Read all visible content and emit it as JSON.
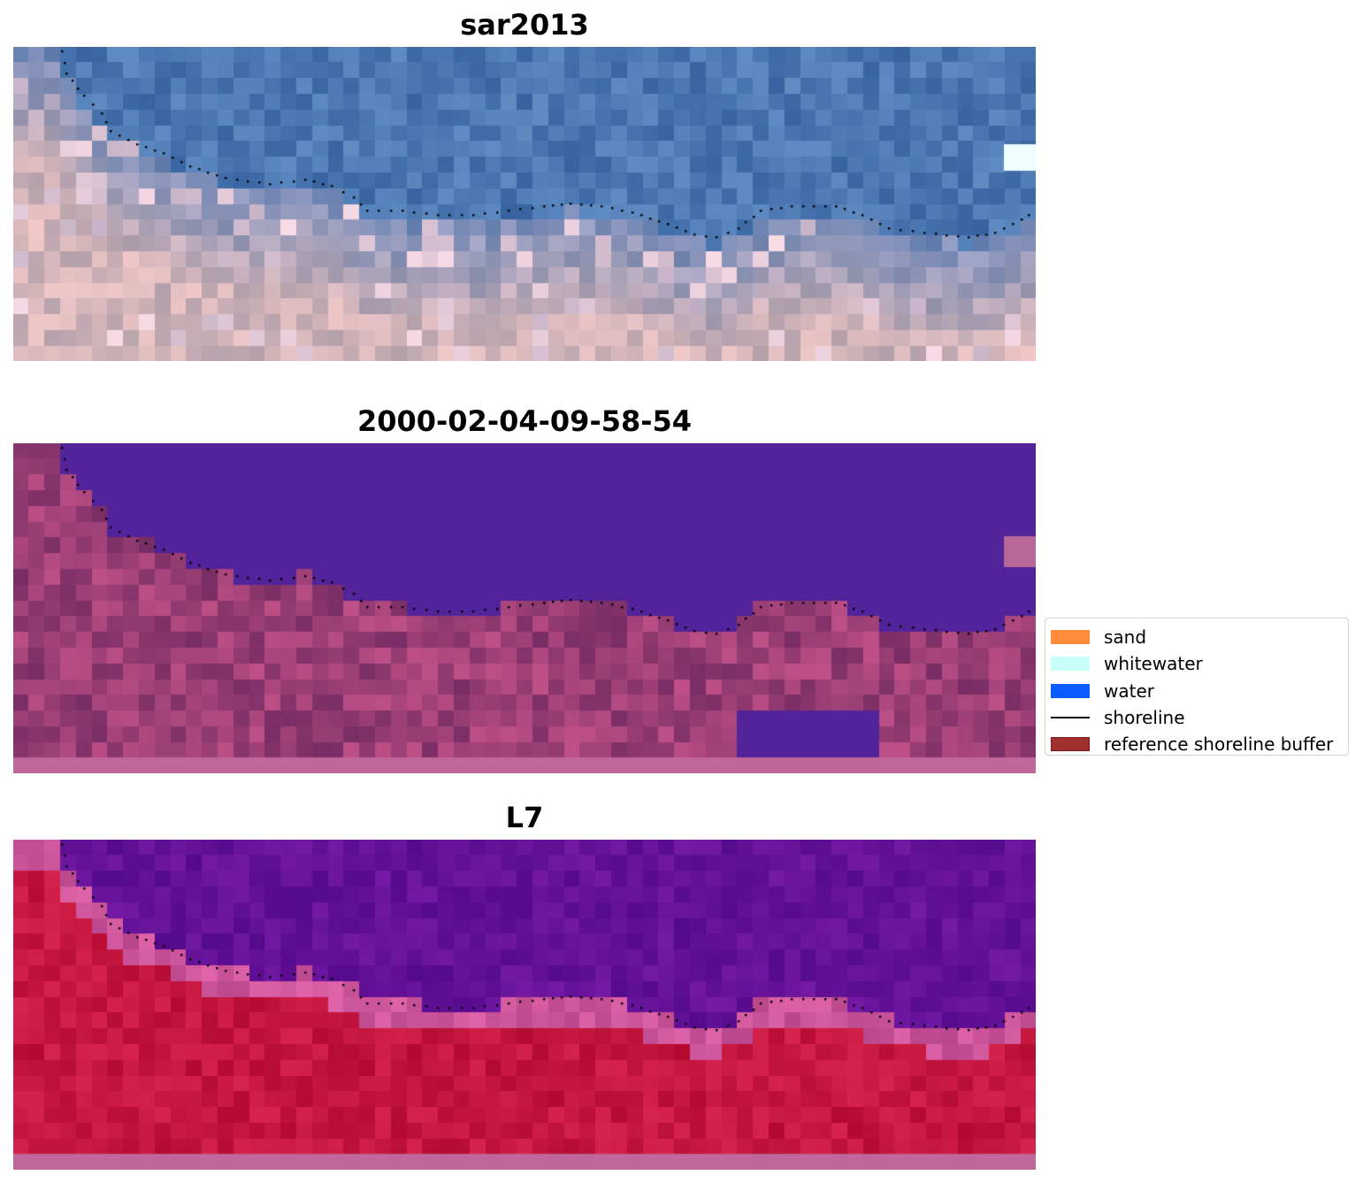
{
  "panels": [
    {
      "title": "sar2013",
      "palette": "rgb"
    },
    {
      "title": "2000-02-04-09-58-54",
      "palette": "classified"
    },
    {
      "title": "L7",
      "palette": "falsecolor"
    }
  ],
  "legend": {
    "items": [
      {
        "label": "sand",
        "color": "#ff8c3a",
        "kind": "patch"
      },
      {
        "label": "whitewater",
        "color": "#c9fff9",
        "kind": "patch"
      },
      {
        "label": "water",
        "color": "#0b5cff",
        "kind": "patch"
      },
      {
        "label": "shoreline",
        "color": "#000000",
        "kind": "line"
      },
      {
        "label": "reference shoreline buffer",
        "color": "#a03030",
        "kind": "patch-border"
      }
    ]
  },
  "colors": {
    "water_class": "#52239a",
    "shoreline_dots": "#000000"
  }
}
